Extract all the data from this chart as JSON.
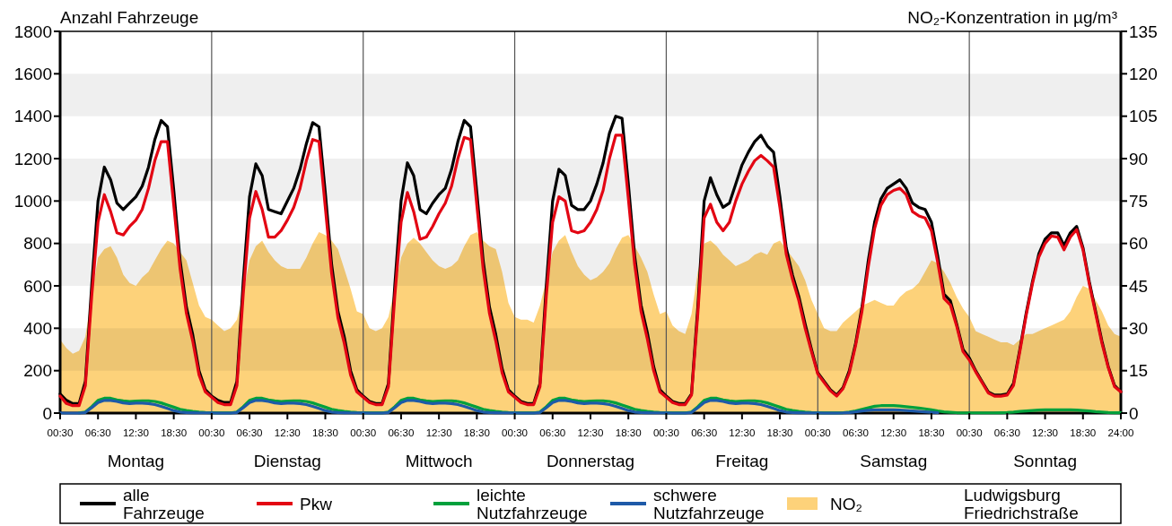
{
  "chart_data": {
    "type": "line",
    "ylabel": "Anzahl Fahrzeuge",
    "y2label": "NO₂-Konzentration in µg/m³",
    "categories": [
      "00:30",
      null,
      null,
      null,
      null,
      null,
      "06:30",
      null,
      null,
      null,
      null,
      null,
      "12:30",
      null,
      null,
      null,
      null,
      null,
      "18:30",
      null,
      null,
      null,
      null,
      null,
      "00:30",
      null,
      null,
      null,
      null,
      null,
      "06:30",
      null,
      null,
      null,
      null,
      null,
      "12:30",
      null,
      null,
      null,
      null,
      null,
      "18:30",
      null,
      null,
      null,
      null,
      null,
      "00:30",
      null,
      null,
      null,
      null,
      null,
      "06:30",
      null,
      null,
      null,
      null,
      null,
      "12:30",
      null,
      null,
      null,
      null,
      null,
      "18:30",
      null,
      null,
      null,
      null,
      null,
      "00:30",
      null,
      null,
      null,
      null,
      null,
      "06:30",
      null,
      null,
      null,
      null,
      null,
      "12:30",
      null,
      null,
      null,
      null,
      null,
      "18:30",
      null,
      null,
      null,
      null,
      null,
      "00:30",
      null,
      null,
      null,
      null,
      null,
      "06:30",
      null,
      null,
      null,
      null,
      null,
      "12:30",
      null,
      null,
      null,
      null,
      null,
      "18:30",
      null,
      null,
      null,
      null,
      null,
      "00:30",
      null,
      null,
      null,
      null,
      null,
      "06:30",
      null,
      null,
      null,
      null,
      null,
      "12:30",
      null,
      null,
      null,
      null,
      null,
      "18:30",
      null,
      null,
      null,
      null,
      null,
      "00:30",
      null,
      null,
      null,
      null,
      null,
      "06:30",
      null,
      null,
      null,
      null,
      null,
      "12:30",
      null,
      null,
      null,
      null,
      null,
      "18:30",
      null,
      null,
      null,
      null,
      null,
      "24:00"
    ],
    "ylim": [
      0,
      1800
    ],
    "yticks": [
      0,
      200,
      400,
      600,
      800,
      1000,
      1200,
      1400,
      1600,
      1800
    ],
    "y2lim": [
      0,
      135
    ],
    "y2ticks": [
      0,
      15,
      30,
      45,
      60,
      75,
      90,
      105,
      120,
      135
    ],
    "bands": [
      {
        "axis": "y",
        "from": 200,
        "to": 400,
        "color": "#efefef"
      },
      {
        "axis": "y",
        "from": 600,
        "to": 800,
        "color": "#efefef"
      },
      {
        "axis": "y",
        "from": 1000,
        "to": 1200,
        "color": "#efefef"
      },
      {
        "axis": "y",
        "from": 1400,
        "to": 1600,
        "color": "#efefef"
      }
    ],
    "legend": "bottom",
    "annotations": [
      "Montag",
      "Dienstag",
      "Mittwoch",
      "Donnerstag",
      "Freitag",
      "Samstag",
      "Sonntag",
      "Ludwigsburg Friedrichstraße"
    ],
    "series": [
      {
        "name": "alle Fahrzeuge",
        "color": "#000000",
        "values": [
          90,
          60,
          45,
          45,
          150,
          600,
          1000,
          1160,
          1100,
          990,
          960,
          990,
          1020,
          1070,
          1160,
          1290,
          1380,
          1350,
          1050,
          720,
          500,
          370,
          200,
          110,
          80,
          60,
          50,
          50,
          150,
          620,
          1020,
          1175,
          1120,
          960,
          950,
          940,
          1000,
          1060,
          1150,
          1270,
          1370,
          1350,
          1040,
          700,
          480,
          360,
          200,
          110,
          80,
          55,
          45,
          45,
          140,
          600,
          1000,
          1180,
          1120,
          960,
          940,
          990,
          1030,
          1060,
          1150,
          1280,
          1380,
          1350,
          1040,
          720,
          500,
          370,
          210,
          110,
          80,
          55,
          45,
          45,
          140,
          600,
          1000,
          1150,
          1120,
          980,
          960,
          960,
          1000,
          1080,
          1180,
          1320,
          1400,
          1390,
          1080,
          740,
          510,
          380,
          220,
          110,
          80,
          55,
          45,
          45,
          90,
          500,
          1000,
          1110,
          1030,
          970,
          990,
          1080,
          1170,
          1230,
          1280,
          1310,
          1260,
          1230,
          1020,
          780,
          650,
          550,
          420,
          300,
          190,
          150,
          110,
          85,
          120,
          200,
          330,
          500,
          720,
          900,
          1010,
          1060,
          1080,
          1100,
          1060,
          990,
          970,
          960,
          900,
          740,
          560,
          530,
          420,
          300,
          260,
          200,
          150,
          100,
          85,
          85,
          90,
          140,
          300,
          470,
          620,
          750,
          820,
          850,
          850,
          790,
          850,
          880,
          780,
          620,
          480,
          340,
          220,
          130,
          100
        ]
      },
      {
        "name": "Pkw",
        "color": "#e30613",
        "values": [
          80,
          45,
          35,
          35,
          130,
          550,
          900,
          1030,
          950,
          850,
          840,
          880,
          910,
          960,
          1060,
          1190,
          1280,
          1280,
          980,
          680,
          470,
          340,
          180,
          100,
          75,
          50,
          40,
          40,
          130,
          560,
          920,
          1045,
          960,
          830,
          830,
          860,
          910,
          970,
          1060,
          1190,
          1290,
          1280,
          970,
          660,
          450,
          330,
          180,
          100,
          75,
          50,
          40,
          40,
          125,
          550,
          900,
          1040,
          950,
          820,
          830,
          880,
          940,
          990,
          1070,
          1200,
          1300,
          1290,
          980,
          680,
          470,
          340,
          190,
          100,
          75,
          50,
          40,
          40,
          125,
          550,
          900,
          1020,
          1000,
          860,
          850,
          860,
          900,
          960,
          1050,
          1200,
          1310,
          1310,
          1010,
          700,
          480,
          350,
          200,
          100,
          75,
          50,
          40,
          40,
          85,
          470,
          920,
          985,
          900,
          860,
          900,
          1000,
          1080,
          1140,
          1190,
          1215,
          1190,
          1160,
          970,
          750,
          630,
          530,
          400,
          290,
          185,
          145,
          105,
          80,
          115,
          190,
          320,
          480,
          690,
          870,
          980,
          1030,
          1050,
          1060,
          1030,
          950,
          930,
          920,
          860,
          710,
          540,
          510,
          410,
          290,
          250,
          195,
          145,
          95,
          80,
          80,
          85,
          130,
          290,
          460,
          610,
          735,
          800,
          835,
          830,
          770,
          830,
          865,
          770,
          610,
          470,
          330,
          215,
          125,
          100
        ]
      },
      {
        "name": "leichte Nutzfahrzeuge",
        "color": "#00a03c",
        "values": [
          null,
          null,
          null,
          1,
          5,
          30,
          60,
          70,
          70,
          62,
          58,
          55,
          57,
          58,
          58,
          55,
          48,
          38,
          28,
          18,
          12,
          8,
          5,
          3,
          2,
          1,
          1,
          1,
          5,
          30,
          60,
          70,
          70,
          62,
          58,
          55,
          57,
          58,
          58,
          55,
          48,
          38,
          28,
          18,
          12,
          8,
          5,
          3,
          2,
          1,
          1,
          1,
          5,
          30,
          60,
          70,
          70,
          62,
          58,
          55,
          57,
          58,
          58,
          55,
          48,
          38,
          28,
          18,
          12,
          8,
          5,
          3,
          2,
          1,
          1,
          1,
          5,
          30,
          60,
          70,
          70,
          62,
          58,
          55,
          57,
          58,
          58,
          55,
          48,
          38,
          28,
          18,
          12,
          8,
          5,
          3,
          2,
          1,
          1,
          1,
          5,
          30,
          60,
          70,
          70,
          62,
          58,
          55,
          57,
          58,
          58,
          55,
          48,
          38,
          28,
          18,
          12,
          8,
          5,
          3,
          2,
          1,
          1,
          1,
          2,
          5,
          10,
          18,
          25,
          32,
          35,
          35,
          35,
          33,
          30,
          27,
          24,
          20,
          15,
          10,
          6,
          4,
          2,
          1,
          1,
          1,
          1,
          1,
          1,
          2,
          3,
          5,
          8,
          10,
          12,
          14,
          15,
          15,
          15,
          15,
          15,
          14,
          12,
          10,
          7,
          5,
          3,
          2,
          2
        ]
      },
      {
        "name": "schwere Nutzfahrzeuge",
        "color": "#1e5aa8",
        "values": [
          1,
          0,
          0,
          0,
          3,
          25,
          50,
          60,
          60,
          55,
          48,
          45,
          47,
          47,
          45,
          40,
          32,
          22,
          12,
          5,
          3,
          2,
          1,
          1,
          1,
          0,
          0,
          0,
          3,
          25,
          50,
          60,
          60,
          55,
          48,
          45,
          47,
          47,
          45,
          40,
          32,
          22,
          12,
          5,
          3,
          2,
          1,
          1,
          1,
          0,
          0,
          0,
          3,
          25,
          50,
          60,
          60,
          55,
          48,
          45,
          47,
          47,
          45,
          40,
          32,
          22,
          12,
          5,
          3,
          2,
          1,
          1,
          1,
          0,
          0,
          0,
          3,
          25,
          50,
          60,
          60,
          55,
          48,
          45,
          47,
          47,
          45,
          40,
          32,
          22,
          12,
          5,
          3,
          2,
          1,
          1,
          1,
          0,
          0,
          0,
          3,
          25,
          50,
          60,
          60,
          55,
          48,
          45,
          47,
          47,
          45,
          40,
          32,
          22,
          12,
          5,
          3,
          2,
          1,
          1,
          1,
          0,
          0,
          0,
          1,
          3,
          6,
          10,
          13,
          15,
          15,
          15,
          15,
          14,
          12,
          10,
          8,
          6,
          4,
          2,
          null,
          null,
          null,
          null,
          null,
          null,
          null,
          null,
          null,
          null,
          null,
          null,
          null,
          null,
          null,
          null,
          null,
          null,
          null,
          null,
          null,
          null,
          null,
          null,
          null,
          null,
          null,
          null,
          null
        ]
      },
      {
        "name": "NO₂",
        "type": "area",
        "axis": "y2",
        "color": "#fdd27a",
        "values": [
          26,
          23,
          21,
          22,
          27,
          42,
          55,
          58,
          59,
          55,
          49,
          46,
          45,
          48,
          50,
          54,
          58,
          61,
          60,
          57,
          54,
          46,
          38,
          34,
          33,
          31,
          29,
          30,
          33,
          42,
          54,
          59,
          61,
          57,
          54,
          52,
          51,
          51,
          51,
          55,
          60,
          64,
          63,
          61,
          58,
          51,
          44,
          36,
          35,
          30,
          29,
          30,
          34,
          44,
          55,
          60,
          62,
          60,
          57,
          54,
          52,
          51,
          52,
          54,
          59,
          63,
          64,
          61,
          59,
          58,
          50,
          39,
          34,
          33,
          33,
          32,
          38,
          47,
          57,
          61,
          63,
          57,
          52,
          49,
          47,
          48,
          50,
          53,
          58,
          62,
          63,
          59,
          55,
          50,
          42,
          35,
          36,
          31,
          29,
          28,
          35,
          50,
          60,
          61,
          59,
          56,
          54,
          52,
          53,
          54,
          56,
          57,
          56,
          60,
          61,
          58,
          55,
          52,
          47,
          40,
          35,
          30,
          29,
          29,
          32,
          34,
          36,
          38,
          39,
          40,
          39,
          38,
          38,
          41,
          43,
          44,
          46,
          50,
          54,
          53,
          50,
          46,
          41,
          37,
          34,
          29,
          28,
          27,
          26,
          25,
          25,
          24,
          26,
          28,
          28,
          29,
          30,
          31,
          32,
          33,
          36,
          41,
          45,
          44,
          40,
          36,
          31,
          28,
          27
        ]
      }
    ]
  }
}
